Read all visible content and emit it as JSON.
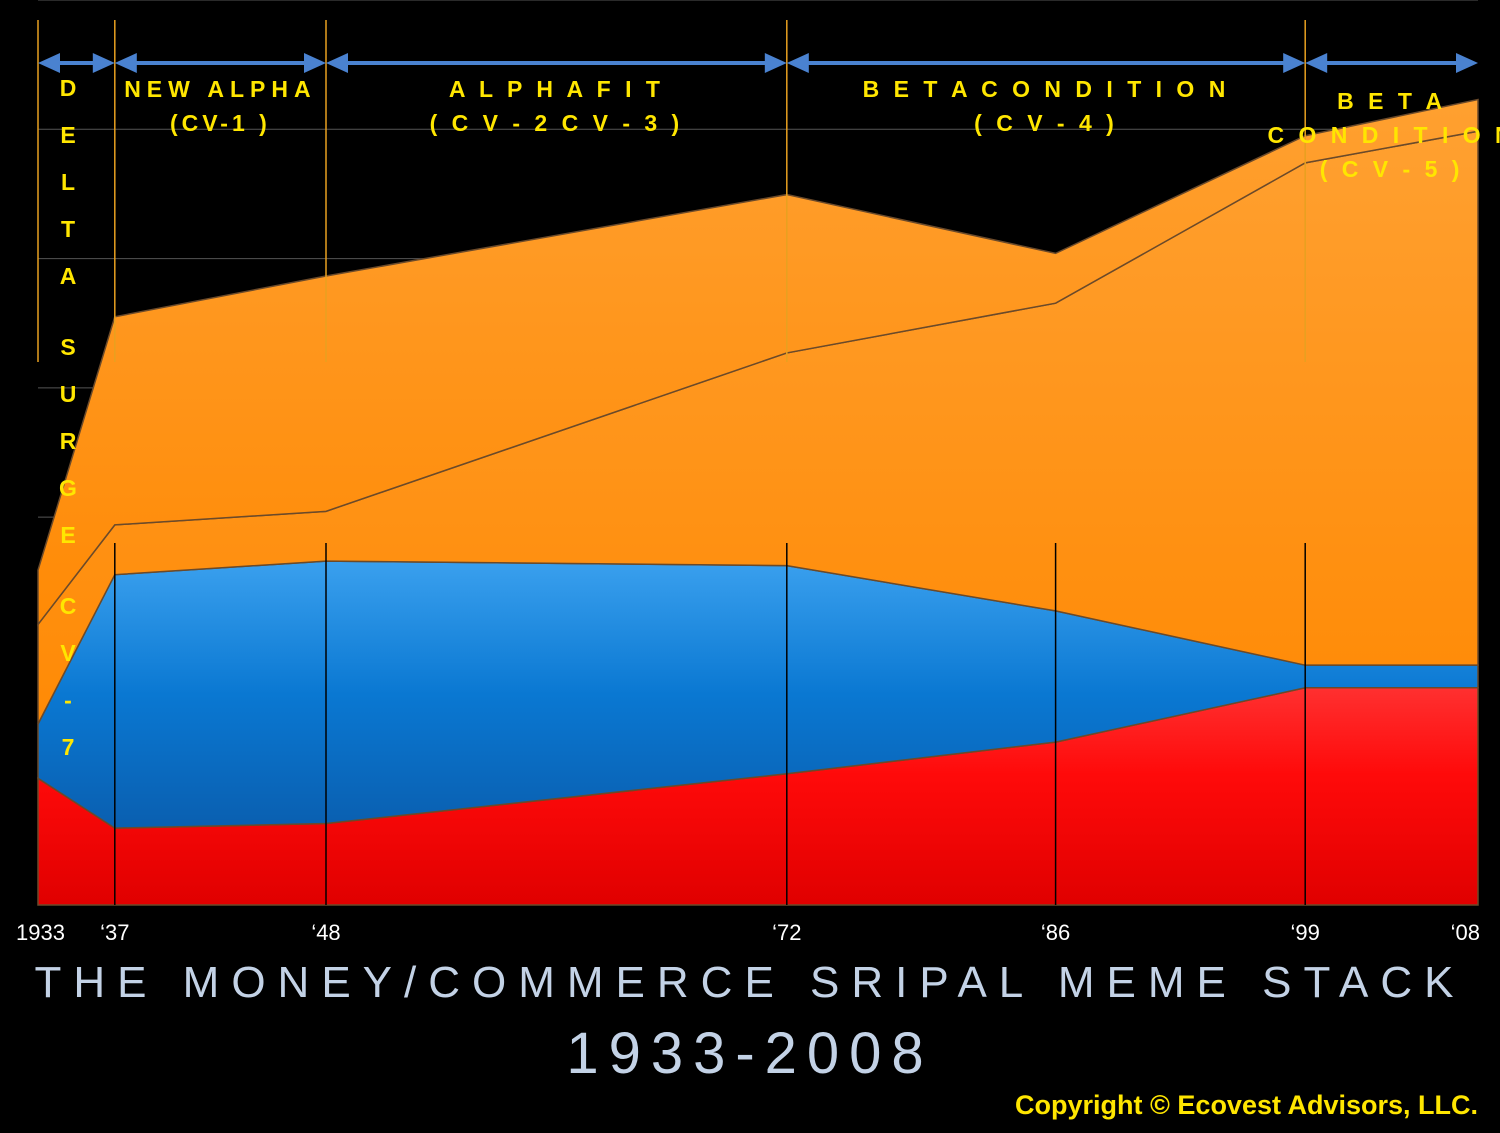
{
  "chart_data": {
    "type": "area",
    "title": "THE MONEY/COMMERCE SRIPAL MEME STACK",
    "subtitle": "1933-2008",
    "x": [
      1933,
      1937,
      1948,
      1972,
      1986,
      1999,
      2008
    ],
    "x_tick_labels": [
      "1933",
      "‘37",
      "‘48",
      "‘72",
      "‘86",
      "‘99",
      "‘08"
    ],
    "y_range": [
      0,
      100
    ],
    "ylabel": "",
    "xlabel": "",
    "grid": true,
    "series": [
      {
        "color": "#ff0a0a",
        "values": [
          14,
          8.5,
          9,
          14.5,
          18,
          24,
          24
        ]
      },
      {
        "color": "#0a78d2",
        "values": [
          6,
          28,
          29,
          23,
          14.5,
          2.5,
          2.5
        ]
      },
      {
        "color": "#ff8c0a",
        "values": [
          11,
          5.5,
          5.5,
          23.5,
          34,
          55.5,
          59
        ]
      },
      {
        "color": "#ff8c0a",
        "values": [
          6,
          23,
          26,
          17.5,
          5.5,
          3,
          3.5
        ]
      }
    ],
    "periods": [
      {
        "label": "D E L T A   S U R G E   C V - 7",
        "start": 1933,
        "end": 1937
      },
      {
        "label": "NEW ALPHA",
        "sublabel": "(CV-1 )",
        "start": 1937,
        "end": 1948
      },
      {
        "label": "A L P H A   F I T",
        "sublabel": "( C V - 2   C V - 3 )",
        "start": 1948,
        "end": 1972
      },
      {
        "label": "B E T A   C O N D I T I O N",
        "sublabel": "( C V - 4 )",
        "start": 1972,
        "end": 1999
      },
      {
        "label": "B E T A",
        "sublabel": "C O N D I T I O N",
        "sublabel2": "( C V - 5 )",
        "start": 1999,
        "end": 2008
      }
    ]
  },
  "copyright": "Copyright © Ecovest Advisors, LLC.",
  "colors": {
    "background": "#000000",
    "label_yellow": "#ffe600",
    "arrow_blue": "#4a82d0",
    "title_color": "#c3d2e6"
  }
}
